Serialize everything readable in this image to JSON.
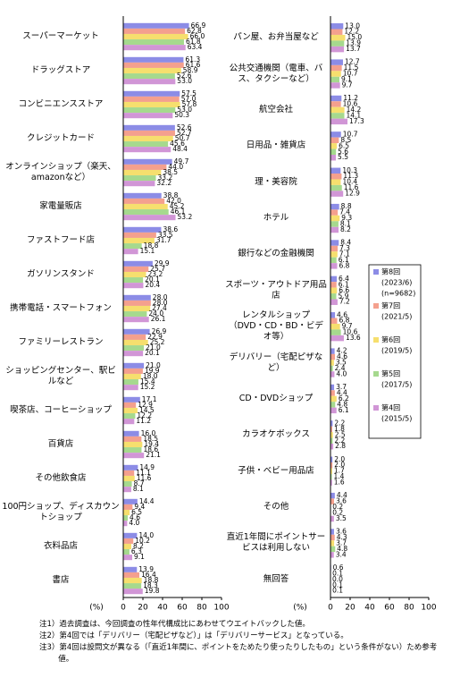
{
  "chart_data": [
    {
      "type": "hbar",
      "x_label": "(%)",
      "xlim": [
        0,
        100
      ],
      "xticks": [
        0,
        20,
        40,
        60,
        80,
        100
      ],
      "categories": [
        "スーパーマーケット",
        "ドラッグストア",
        "コンビニエンスストア",
        "クレジットカード",
        "オンラインショップ（楽天、amazonなど）",
        "家電量販店",
        "ファストフード店",
        "ガソリンスタンド",
        "携帯電話・スマートフォン",
        "ファミリーレストラン",
        "ショッピングセンター、駅ビルなど",
        "喫茶店、コーヒーショップ",
        "百貨店",
        "その他飲食店",
        "100円ショップ、ディスカウントショップ",
        "衣料品店",
        "書店"
      ],
      "series": [
        {
          "name": "第8回",
          "color": "#8c8ce6",
          "values": [
            66.9,
            61.3,
            57.5,
            52.6,
            49.7,
            38.8,
            38.6,
            29.9,
            28.0,
            26.9,
            21.0,
            17.1,
            16.0,
            14.9,
            14.4,
            14.0,
            13.9
          ],
          "value_labels": [
            "66.9",
            "61.3",
            "57.5",
            "52.6",
            "49.7",
            "38.8",
            "38.6",
            "29.9",
            "28.0",
            "26.9",
            "21.0",
            "17.1",
            "16.0",
            "14.9",
            "14.4",
            "14.0",
            "13.9"
          ]
        },
        {
          "name": "第7回",
          "color": "#f4a08e",
          "values": [
            62.8,
            61.6,
            57.0,
            52.7,
            44.0,
            42.0,
            33.5,
            25.7,
            28.0,
            22.9,
            19.9,
            12.9,
            18.5,
            11.1,
            9.4,
            10.2,
            16.4
          ],
          "value_labels": [
            "62.8",
            "61.6",
            "57.0",
            "52.7",
            "44.0",
            "42.0",
            "33.5",
            "25.7",
            "28.0",
            "22.9",
            "19.9",
            "12.9",
            "18.5",
            "11.1",
            "9.4",
            "10.2",
            "16.4"
          ]
        },
        {
          "name": "第6回",
          "color": "#f6df6e",
          "values": [
            66.0,
            58.9,
            57.8,
            50.7,
            38.5,
            45.2,
            31.7,
            23.2,
            27.4,
            25.2,
            18.0,
            14.5,
            19.4,
            11.6,
            6.5,
            8.2,
            18.8
          ],
          "value_labels": [
            "66.0",
            "58.9",
            "57.8",
            "50.7",
            "38.5",
            "45.2",
            "31.7",
            "23.2",
            "27.4",
            "25.2",
            "18.0",
            "14.5",
            "19.4",
            "11.6",
            "6.5",
            "8.2",
            "18.8"
          ]
        },
        {
          "name": "第5回",
          "color": "#a6d98e",
          "values": [
            61.8,
            52.6,
            53.0,
            45.6,
            33.2,
            46.1,
            18.8,
            20.1,
            24.0,
            21.0,
            15.4,
            12.2,
            18.6,
            8.7,
            4.6,
            6.3,
            18.3
          ],
          "value_labels": [
            "61.8",
            "52.6",
            "53.0",
            "45.6",
            "33.2",
            "46.1",
            "18.8",
            "20.1",
            "24.0",
            "21.0",
            "15.4",
            "12.2",
            "18.6",
            "8.7",
            "4.6",
            "6.3",
            "18.3"
          ]
        },
        {
          "name": "第4回",
          "color": "#d196d6",
          "values": [
            63.4,
            53.0,
            50.3,
            48.4,
            32.2,
            53.2,
            15.1,
            20.4,
            26.1,
            20.1,
            15.2,
            11.2,
            21.1,
            8.1,
            4.0,
            9.1,
            19.8
          ],
          "value_labels": [
            "63.4",
            "53.0",
            "50.3",
            "48.4",
            "32.2",
            "53.2",
            "15.1",
            "20.4",
            "26.1",
            "20.1",
            "15.2",
            "11.2",
            "21.1",
            "8.1",
            "4.0",
            "9.1",
            "19.8"
          ]
        }
      ]
    },
    {
      "type": "hbar",
      "x_label": "(%)",
      "xlim": [
        0,
        100
      ],
      "xticks": [
        0,
        20,
        40,
        60,
        80,
        100
      ],
      "categories": [
        "パン屋、お弁当屋など",
        "公共交通機関（電車、バス、タクシーなど）",
        "航空会社",
        "日用品・雑貨店",
        "理・美容院",
        "ホテル",
        "銀行などの金融機関",
        "スポーツ・アウトドア用品店",
        "レンタルショップ（DVD・CD・BD・ビデオ等）",
        "デリバリー（宅配ピザなど）",
        "CD・DVDショップ",
        "カラオケボックス",
        "子供・ベビー用品店",
        "その他",
        "直近1年間にポイントサービスは利用しない",
        "無回答"
      ],
      "series": [
        {
          "name": "第8回",
          "period": "(2023/6)",
          "n": "(n=9682)",
          "color": "#8c8ce6",
          "values": [
            13.0,
            12.7,
            11.2,
            10.7,
            10.3,
            8.8,
            8.4,
            6.4,
            4.6,
            4.2,
            3.7,
            2.2,
            2.0,
            4.4,
            3.6,
            0.6
          ],
          "value_labels": [
            "13.0",
            "12.7",
            "11.2",
            "10.7",
            "10.3",
            "8.8",
            "8.4",
            "6.4",
            "4.6",
            "4.2",
            "3.7",
            "2.2",
            "2.0",
            "4.4",
            "3.6",
            "0.6"
          ]
        },
        {
          "name": "第7回",
          "period": "(2021/5)",
          "color": "#f4a08e",
          "values": [
            12.2,
            11.5,
            10.6,
            8.5,
            11.3,
            7.4,
            7.3,
            6.1,
            6.8,
            4.6,
            4.4,
            1.8,
            2.0,
            3.6,
            4.3,
            0.1
          ],
          "value_labels": [
            "12.2",
            "11.5",
            "10.6",
            "8.5",
            "11.3",
            "7.4",
            "7.3",
            "6.1",
            "6.8",
            "4.6",
            "4.4",
            "1.8",
            "2.0",
            "3.6",
            "4.3",
            "0.1"
          ]
        },
        {
          "name": "第6回",
          "period": "(2019/5)",
          "color": "#f6df6e",
          "values": [
            15.0,
            10.7,
            14.2,
            6.5,
            10.4,
            9.3,
            7.1,
            6.6,
            9.7,
            3.5,
            6.2,
            2.5,
            1.7,
            0.2,
            3.7,
            0.0
          ],
          "value_labels": [
            "15.0",
            "10.7",
            "14.2",
            "6.5",
            "10.4",
            "9.3",
            "7.1",
            "6.6",
            "9.7",
            "3.5",
            "6.2",
            "2.5",
            "1.7",
            "0.2",
            "3.7",
            "0.0"
          ]
        },
        {
          "name": "第5回",
          "period": "(2017/5)",
          "color": "#a6d98e",
          "values": [
            13.9,
            9.1,
            14.1,
            5.6,
            11.6,
            8.1,
            6.1,
            5.9,
            10.6,
            2.4,
            4.8,
            2.2,
            1.4,
            0.2,
            4.8,
            0.1
          ],
          "value_labels": [
            "13.9",
            "9.1",
            "14.1",
            "5.6",
            "11.6",
            "8.1",
            "6.1",
            "5.9",
            "10.6",
            "2.4",
            "4.8",
            "2.2",
            "1.4",
            "0.2",
            "4.8",
            "0.1"
          ]
        },
        {
          "name": "第4回",
          "period": "(2015/5)",
          "color": "#d196d6",
          "values": [
            13.7,
            9.7,
            17.3,
            5.5,
            12.9,
            8.2,
            6.8,
            7.2,
            13.6,
            4.0,
            6.1,
            2.8,
            1.6,
            3.5,
            3.4,
            0.1
          ],
          "value_labels": [
            "13.7",
            "9.7",
            "17.3",
            "5.5",
            "12.9",
            "8.2",
            "6.8",
            "7.2",
            "13.6",
            "4.0",
            "6.1",
            "2.8",
            "1.6",
            "3.5",
            "3.4",
            "0.1"
          ]
        }
      ]
    }
  ],
  "notes": [
    "注1）過去調査は、今回調査の性年代構成比にあわせてウエイトバックした値。",
    "注2）第4回では「デリバリー（宅配ピザなど）」は「デリバリーサービス」となっている。",
    "注3）第4回は設問文が異なる（「直近1年間に、ポイントをためたり使ったりしたもの」という条件がない）ため参考値。"
  ]
}
